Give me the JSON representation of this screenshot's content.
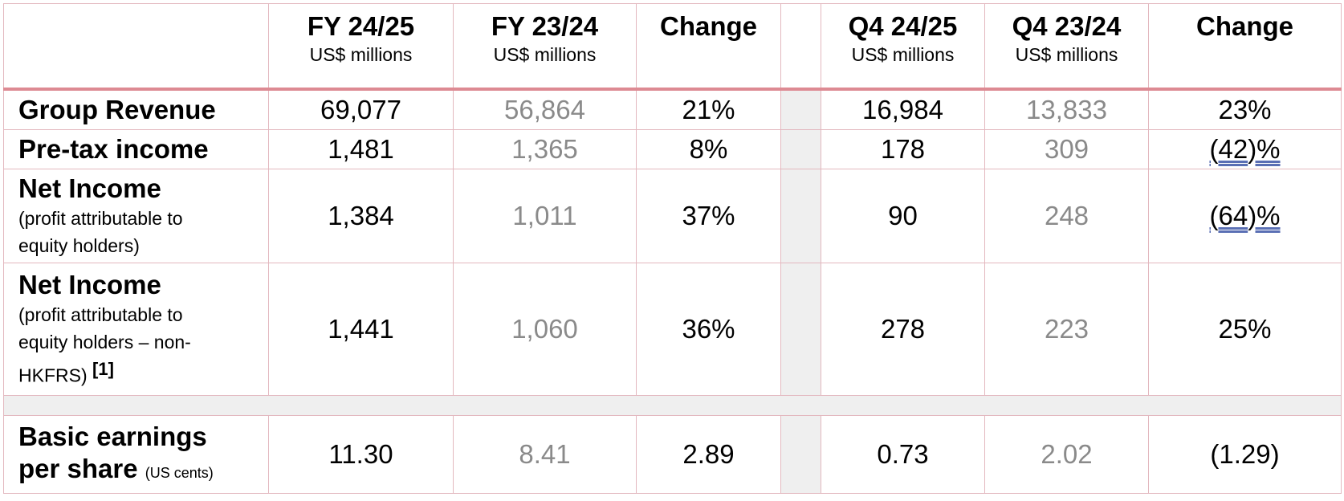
{
  "header": {
    "fy_current": {
      "title": "FY 24/25",
      "unit": "US$ millions"
    },
    "fy_prior": {
      "title": "FY 23/24",
      "unit": "US$ millions"
    },
    "fy_change": "Change",
    "q_current": {
      "title": "Q4 24/25",
      "unit": "US$ millions"
    },
    "q_prior": {
      "title": "Q4 23/24",
      "unit": "US$ millions"
    },
    "q_change": "Change"
  },
  "rows": [
    {
      "label": "Group Revenue",
      "fy_current": "69,077",
      "fy_prior": "56,864",
      "fy_change": "21%",
      "q_current": "16,984",
      "q_prior": "13,833",
      "q_change": "23%"
    },
    {
      "label": "Pre-tax income",
      "fy_current": "1,481",
      "fy_prior": "1,365",
      "fy_change": "8%",
      "q_current": "178",
      "q_prior": "309",
      "q_change_open": "(",
      "q_change_num": "42",
      "q_change_close": ")%"
    },
    {
      "label": "Net Income",
      "sub1": "(profit attributable to",
      "sub2": "equity holders)",
      "fy_current": "1,384",
      "fy_prior": "1,011",
      "fy_change": "37%",
      "q_current": "90",
      "q_prior": "248",
      "q_change_open": "(",
      "q_change_num": "64",
      "q_change_close": ")%"
    },
    {
      "label": "Net Income",
      "sub1": "(profit attributable to",
      "sub2": "equity holders – non-",
      "sub3": "HKFRS)",
      "ref": "[1]",
      "fy_current": "1,441",
      "fy_prior": "1,060",
      "fy_change": "36%",
      "q_current": "278",
      "q_prior": "223",
      "q_change": "25%"
    },
    {
      "label1": "Basic earnings",
      "label2": "per share",
      "unit": "(US cents)",
      "fy_current": "11.30",
      "fy_prior": "8.41",
      "fy_change": "2.89",
      "q_current": "0.73",
      "q_prior": "2.02",
      "q_change": "(1.29)"
    }
  ]
}
